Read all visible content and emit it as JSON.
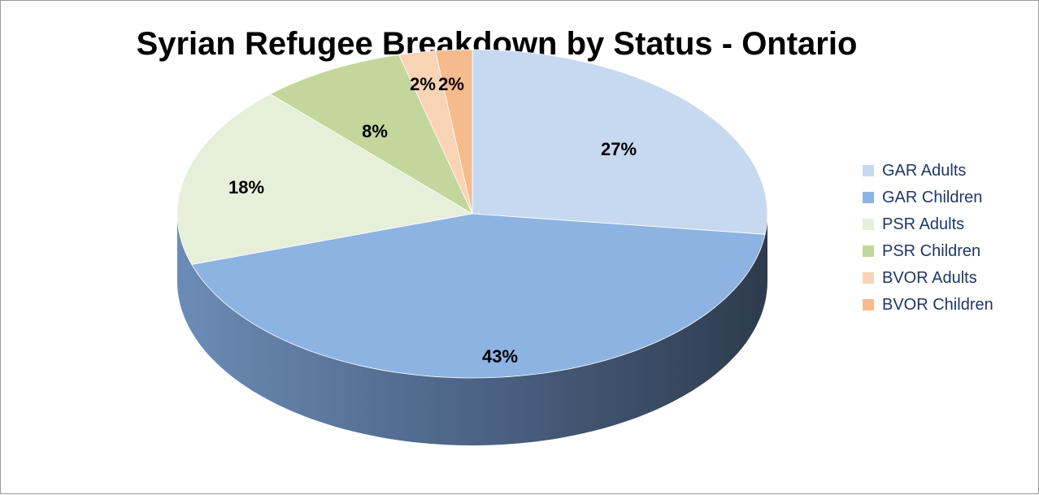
{
  "chart_data": {
    "type": "pie",
    "title": "Syrian Refugee Breakdown by Status - Ontario",
    "categories": [
      "GAR Adults",
      "GAR Children",
      "PSR Adults",
      "PSR Children",
      "BVOR Adults",
      "BVOR Children"
    ],
    "values": [
      27,
      43,
      18,
      8,
      2,
      2
    ],
    "data_labels": [
      "27%",
      "43%",
      "18%",
      "8%",
      "2%",
      "2%"
    ],
    "colors": [
      "#c6d9f0",
      "#8db3e2",
      "#e6efd9",
      "#c3d69b",
      "#f9d4b4",
      "#f6bb8c"
    ],
    "style": "3d",
    "legend_position": "right"
  }
}
